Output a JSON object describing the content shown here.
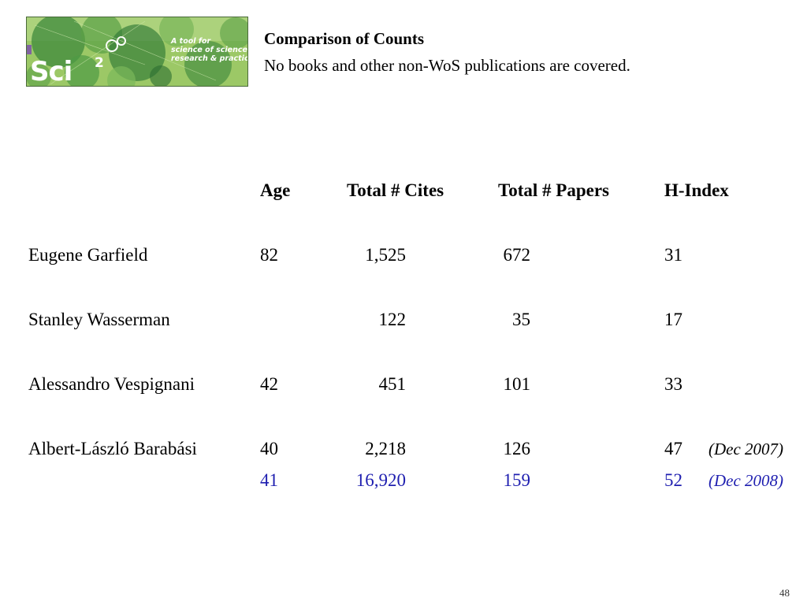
{
  "logo": {
    "wordmark": "Sci",
    "superscript": "2",
    "tagline": [
      "A tool for",
      "science of science",
      "research & practice"
    ]
  },
  "title": "Comparison of Counts",
  "subtitle": "No books and other non-WoS publications are covered.",
  "table": {
    "headers": {
      "age": "Age",
      "cites": "Total # Cites",
      "papers": "Total # Papers",
      "hindex": "H-Index"
    },
    "rows": [
      {
        "name": "Eugene Garfield",
        "age": "82",
        "cites": "1,525",
        "papers": "672",
        "hindex": "31"
      },
      {
        "name": "Stanley Wasserman",
        "age": "",
        "cites": "122",
        "papers": "35",
        "hindex": "17"
      },
      {
        "name": "Alessandro Vespignani",
        "age": "42",
        "cites": "451",
        "papers": "101",
        "hindex": "33"
      },
      {
        "name": "Albert-László Barabási",
        "age": "40",
        "cites": "2,218",
        "papers": "126",
        "hindex": "47",
        "note": "(Dec 2007)"
      },
      {
        "name": "",
        "age": "41",
        "cites": "16,920",
        "papers": "159",
        "hindex": "52",
        "note": "(Dec 2008)"
      }
    ]
  },
  "colors": {
    "highlight": "#1f1fb0"
  },
  "page_number": "48"
}
